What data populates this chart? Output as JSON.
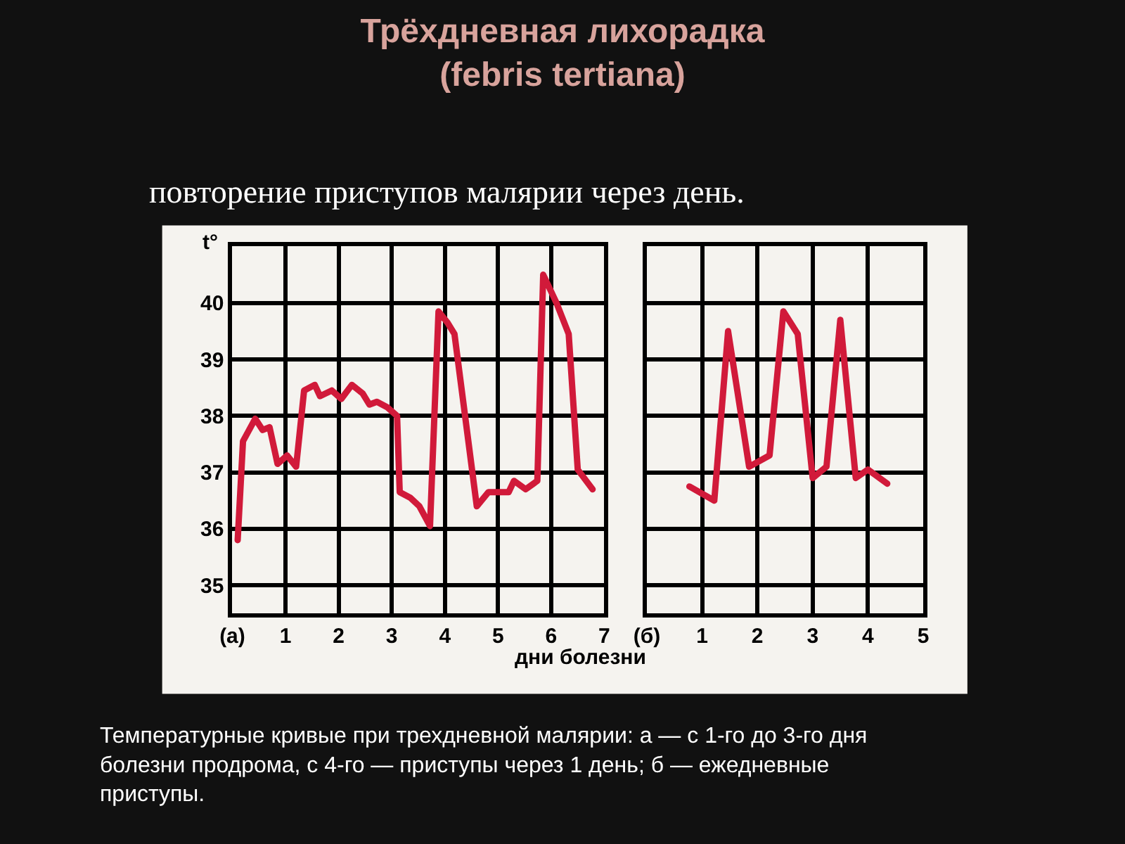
{
  "chart_data": [
    {
      "type": "line",
      "title": "Трёхдневная лихорадка\n(febris tertiana)",
      "subtitle": "повторение приступов малярии через день.",
      "xlabel": "дни болезни",
      "ylabel": "t°",
      "annotations": [
        "Температурные кривые при трехдневной малярии: а — с 1-го до 3-го дня болезни продрома, с 4-го — приступы через 1 день; б — ежедневные приступы."
      ],
      "x": [
        0.1,
        0.2,
        0.43,
        0.57,
        0.7,
        0.85,
        1.03,
        1.2,
        1.35,
        1.55,
        1.65,
        1.87,
        2.05,
        2.25,
        2.45,
        2.58,
        2.72,
        2.92,
        3.1,
        3.15,
        3.35,
        3.52,
        3.72,
        3.88,
        4.05,
        4.18,
        4.6,
        4.82,
        5.0,
        5.2,
        5.3,
        5.52,
        5.74,
        5.85,
        6.1,
        6.33,
        6.5,
        6.78
      ],
      "series": [
        {
          "color": "#d11a3a",
          "values": [
            35.8,
            37.55,
            37.95,
            37.75,
            37.8,
            37.15,
            37.3,
            37.1,
            38.45,
            38.55,
            38.35,
            38.45,
            38.3,
            38.55,
            38.4,
            38.2,
            38.25,
            38.15,
            38.0,
            36.65,
            36.55,
            36.4,
            36.05,
            39.85,
            39.65,
            39.45,
            36.4,
            36.65,
            36.65,
            36.65,
            36.85,
            36.7,
            36.85,
            40.5,
            40.0,
            39.45,
            37.05,
            36.7
          ]
        }
      ],
      "xlim": [
        0,
        7
      ],
      "xticks": [
        {
          "value": 0,
          "label": "(а)"
        },
        1,
        2,
        3,
        4,
        5,
        6,
        7
      ],
      "ylim": [
        34.5,
        41
      ],
      "yticks": [
        35,
        36,
        37,
        38,
        39,
        40,
        {
          "value": 41,
          "label": null
        }
      ],
      "grid": true,
      "marker": "none",
      "line_style": "solid"
    },
    {
      "type": "line",
      "x": [
        0.77,
        1.22,
        1.47,
        1.85,
        2.22,
        2.47,
        2.73,
        3.0,
        3.25,
        3.5,
        3.78,
        4.0,
        4.35
      ],
      "series": [
        {
          "color": "#d11a3a",
          "values": [
            36.75,
            36.5,
            39.5,
            37.1,
            37.3,
            39.85,
            39.45,
            36.9,
            37.1,
            39.7,
            36.9,
            37.05,
            36.8
          ]
        }
      ],
      "xlim": [
        0,
        5
      ],
      "xticks": [
        {
          "value": 0,
          "label": "(б)"
        },
        1,
        2,
        3,
        4,
        5
      ],
      "ylim": [
        34.5,
        41
      ],
      "yticks": [
        35,
        36,
        37,
        38,
        39,
        40,
        {
          "value": 41,
          "label": null
        }
      ],
      "tick_labels": "x",
      "grid": true,
      "marker": "none",
      "line_style": "solid"
    }
  ]
}
